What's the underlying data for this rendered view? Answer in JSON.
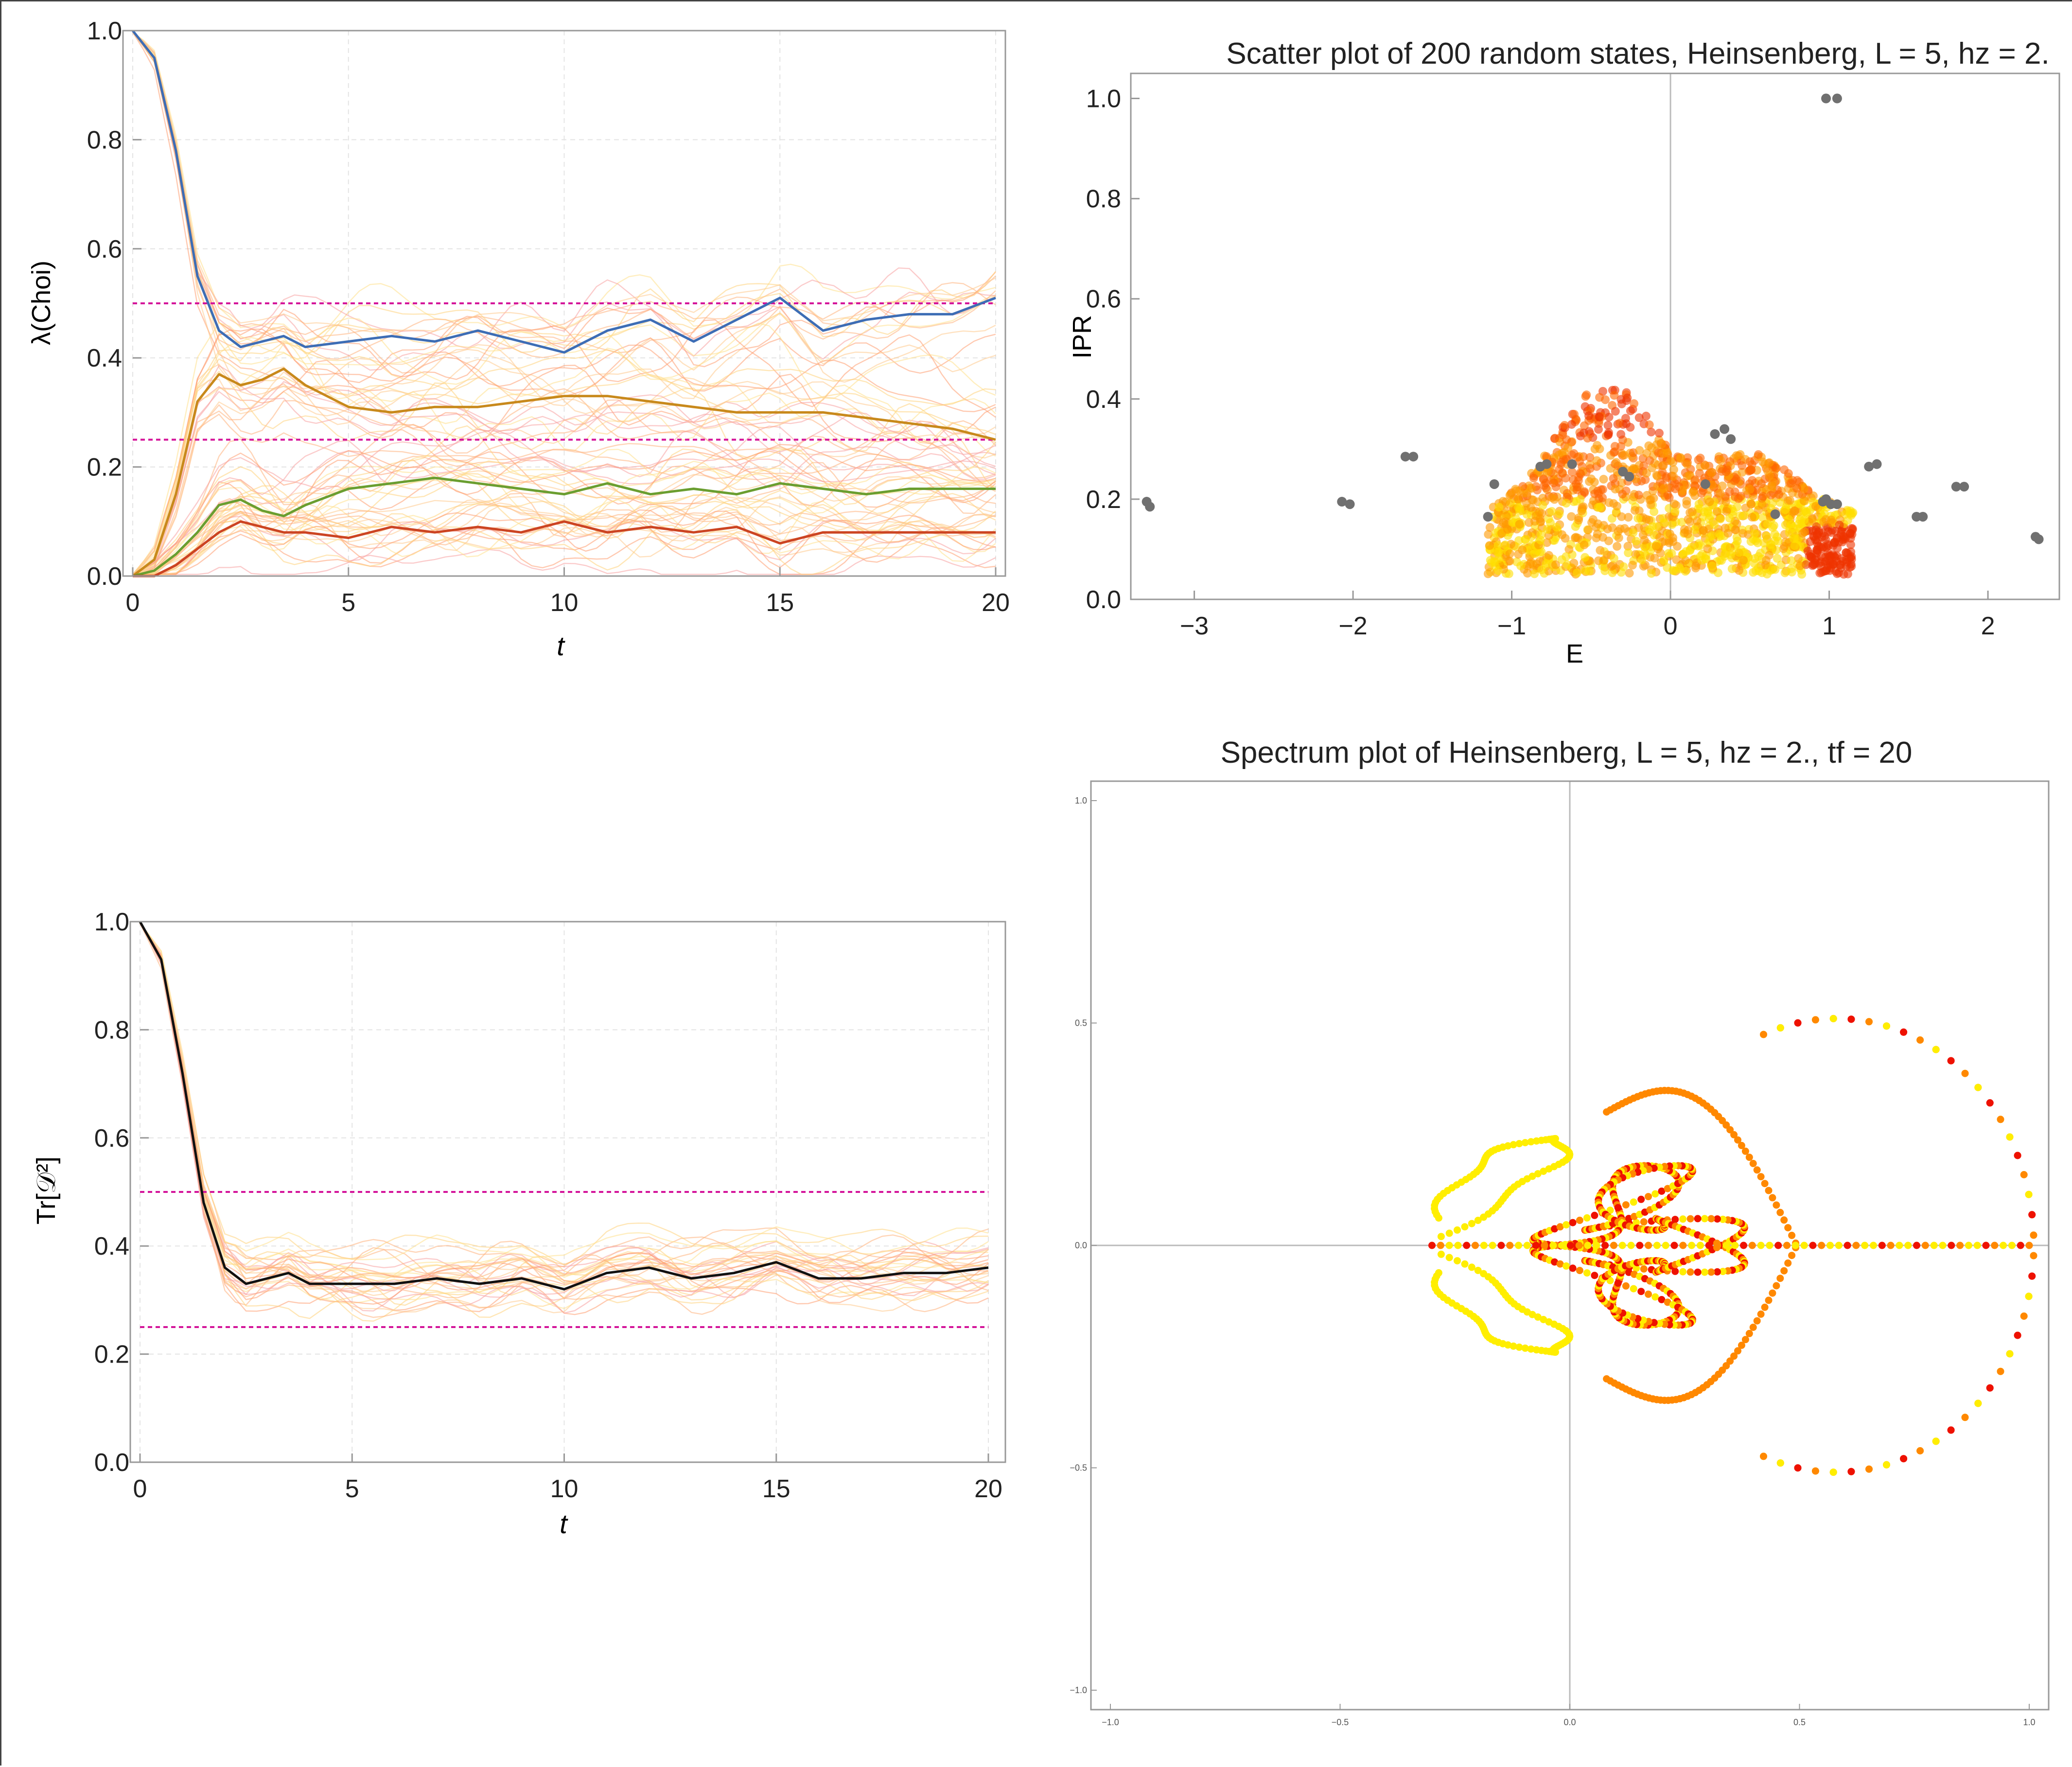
{
  "chart_data": [
    {
      "type": "line",
      "xlabel": "t",
      "ylabel": "λ(Choi)",
      "xlim": [
        0,
        20
      ],
      "ylim": [
        0,
        1.0
      ],
      "xticks": [
        "0",
        "5",
        "10",
        "15",
        "20"
      ],
      "yticks": [
        "0.0",
        "0.2",
        "0.4",
        "0.6",
        "0.8",
        "1.0"
      ],
      "grid": true,
      "reference_lines": [
        0.5,
        0.25
      ],
      "reference_color": "#d4149a",
      "series": [
        {
          "color": "#3d6db5",
          "x": [
            0,
            0.5,
            1,
            1.5,
            2,
            2.5,
            3,
            3.5,
            4,
            5,
            6,
            7,
            8,
            9,
            10,
            11,
            12,
            13,
            14,
            15,
            16,
            17,
            18,
            19,
            20
          ],
          "y": [
            1.0,
            0.95,
            0.78,
            0.55,
            0.45,
            0.42,
            0.43,
            0.44,
            0.42,
            0.43,
            0.44,
            0.43,
            0.45,
            0.43,
            0.41,
            0.45,
            0.47,
            0.43,
            0.47,
            0.51,
            0.45,
            0.47,
            0.48,
            0.48,
            0.51
          ]
        },
        {
          "color": "#c8891b",
          "x": [
            0,
            0.5,
            1,
            1.5,
            2,
            2.5,
            3,
            3.5,
            4,
            5,
            6,
            7,
            8,
            9,
            10,
            11,
            12,
            13,
            14,
            15,
            16,
            17,
            18,
            19,
            20
          ],
          "y": [
            0.0,
            0.03,
            0.15,
            0.32,
            0.37,
            0.35,
            0.36,
            0.38,
            0.35,
            0.31,
            0.3,
            0.31,
            0.31,
            0.32,
            0.33,
            0.33,
            0.32,
            0.31,
            0.3,
            0.3,
            0.3,
            0.29,
            0.28,
            0.27,
            0.25
          ]
        },
        {
          "color": "#6a9e30",
          "x": [
            0,
            0.5,
            1,
            1.5,
            2,
            2.5,
            3,
            3.5,
            4,
            5,
            6,
            7,
            8,
            9,
            10,
            11,
            12,
            13,
            14,
            15,
            16,
            17,
            18,
            19,
            20
          ],
          "y": [
            0.0,
            0.01,
            0.04,
            0.08,
            0.13,
            0.14,
            0.12,
            0.11,
            0.13,
            0.16,
            0.17,
            0.18,
            0.17,
            0.16,
            0.15,
            0.17,
            0.15,
            0.16,
            0.15,
            0.17,
            0.16,
            0.15,
            0.16,
            0.16,
            0.16
          ]
        },
        {
          "color": "#cc4422",
          "x": [
            0,
            0.5,
            1,
            1.5,
            2,
            2.5,
            3,
            3.5,
            4,
            5,
            6,
            7,
            8,
            9,
            10,
            11,
            12,
            13,
            14,
            15,
            16,
            17,
            18,
            19,
            20
          ],
          "y": [
            0.0,
            0.0,
            0.02,
            0.05,
            0.08,
            0.1,
            0.09,
            0.08,
            0.08,
            0.07,
            0.09,
            0.08,
            0.09,
            0.08,
            0.1,
            0.08,
            0.09,
            0.08,
            0.09,
            0.06,
            0.08,
            0.08,
            0.08,
            0.08,
            0.08
          ]
        }
      ]
    },
    {
      "type": "scatter",
      "title": "Scatter plot of 200 random states, Heinsenberg, L = 5, hz = 2.",
      "xlabel": "E",
      "ylabel": "IPR",
      "xlim": [
        -3.4,
        2.45
      ],
      "ylim": [
        0,
        1.05
      ],
      "xticks": [
        "−3",
        "−2",
        "−1",
        "0",
        "1",
        "2"
      ],
      "yticks": [
        "0.0",
        "0.2",
        "0.4",
        "0.6",
        "0.8",
        "1.0"
      ],
      "grid": false,
      "colors": [
        "#ff9900",
        "#ffdd00",
        "#ee3300",
        "#ff6600",
        "#707070"
      ],
      "gray_points": {
        "color": "#707070",
        "x": [
          -3.3,
          -3.28,
          -2.07,
          -2.02,
          -1.67,
          -1.62,
          -1.11,
          -1.15,
          -0.82,
          -0.78,
          -0.62,
          -0.3,
          -0.26,
          0.22,
          0.28,
          0.34,
          0.38,
          0.66,
          0.96,
          0.98,
          1.01,
          1.05,
          1.25,
          1.3,
          1.55,
          1.59,
          1.8,
          1.85,
          2.3,
          2.32,
          0.98,
          1.05
        ],
        "y": [
          0.195,
          0.185,
          0.195,
          0.19,
          0.285,
          0.285,
          0.23,
          0.165,
          0.265,
          0.27,
          0.27,
          0.255,
          0.245,
          0.23,
          0.33,
          0.34,
          0.32,
          0.17,
          0.195,
          0.2,
          0.19,
          0.19,
          0.265,
          0.27,
          0.165,
          0.165,
          0.225,
          0.225,
          0.125,
          0.12,
          1.0,
          1.0
        ]
      }
    },
    {
      "type": "line",
      "xlabel": "t",
      "ylabel": "Tr[𝒟²]",
      "xlim": [
        0,
        20
      ],
      "ylim": [
        0,
        1.0
      ],
      "xticks": [
        "0",
        "5",
        "10",
        "15",
        "20"
      ],
      "yticks": [
        "0.0",
        "0.2",
        "0.4",
        "0.6",
        "0.8",
        "1.0"
      ],
      "grid": true,
      "reference_lines": [
        0.5,
        0.25
      ],
      "reference_color": "#d4149a",
      "series": [
        {
          "color": "#111111",
          "x": [
            0,
            0.5,
            1,
            1.5,
            2,
            2.5,
            3,
            3.5,
            4,
            5,
            6,
            7,
            8,
            9,
            10,
            11,
            12,
            13,
            14,
            15,
            16,
            17,
            18,
            19,
            20
          ],
          "y": [
            1.0,
            0.93,
            0.72,
            0.48,
            0.36,
            0.33,
            0.34,
            0.35,
            0.33,
            0.33,
            0.33,
            0.34,
            0.33,
            0.34,
            0.32,
            0.35,
            0.36,
            0.34,
            0.35,
            0.37,
            0.34,
            0.34,
            0.35,
            0.35,
            0.36
          ]
        }
      ]
    },
    {
      "type": "scatter",
      "title": "Spectrum plot of Heinsenberg, L = 5, hz = 2., tf = 20",
      "xlim": [
        -1.0,
        1.0
      ],
      "ylim": [
        -1.0,
        1.0
      ],
      "xticks": [
        "−1.0",
        "−0.5",
        "0.0",
        "0.5",
        "1.0"
      ],
      "yticks": [
        "−1.0",
        "−0.5",
        "0.0",
        "0.5",
        "1.0"
      ],
      "grid": false,
      "colors": [
        "#ffee00",
        "#ff8800",
        "#ee1100"
      ]
    }
  ]
}
